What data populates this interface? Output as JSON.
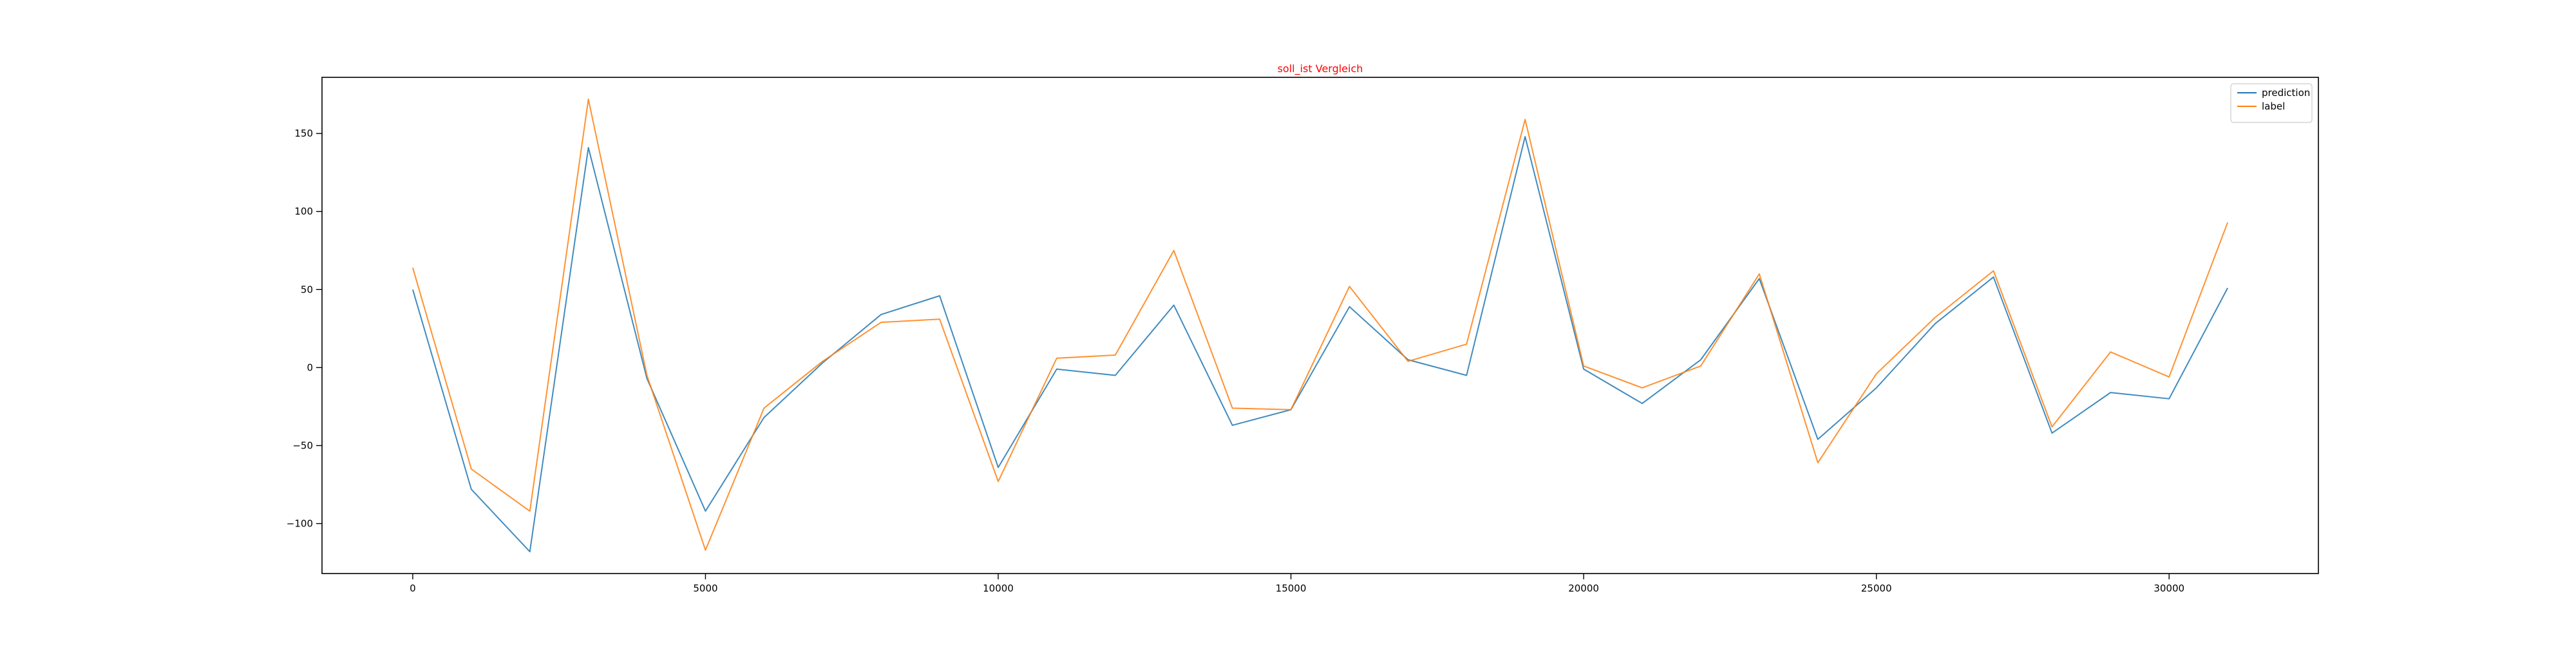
{
  "chart_data": {
    "type": "line",
    "title": "soll_ist Vergleich",
    "title_color": "#ff0000",
    "xlabel": "",
    "ylabel": "",
    "xlim": [
      -1550,
      32550
    ],
    "ylim": [
      -132,
      186
    ],
    "x_ticks": [
      0,
      5000,
      10000,
      15000,
      20000,
      25000,
      30000
    ],
    "y_ticks": [
      -100,
      -50,
      0,
      50,
      100,
      150
    ],
    "grid": false,
    "legend_position": "top-right",
    "x": [
      0,
      1000,
      2000,
      3000,
      4000,
      5000,
      6000,
      7000,
      8000,
      9000,
      10000,
      11000,
      12000,
      13000,
      14000,
      15000,
      16000,
      17000,
      18000,
      19000,
      20000,
      21000,
      22000,
      23000,
      24000,
      25000,
      26000,
      27000,
      28000,
      29000,
      30000,
      31000
    ],
    "series": [
      {
        "name": "prediction",
        "color": "#1f77b4",
        "values": [
          50,
          -78,
          -118,
          141,
          -7,
          -92,
          -32,
          3,
          34,
          46,
          -64,
          -1,
          -5,
          40,
          -37,
          -27,
          39,
          5,
          -5,
          148,
          -1,
          -23,
          5,
          57,
          -46,
          -13,
          28,
          58,
          -42,
          -16,
          -20,
          51
        ]
      },
      {
        "name": "label",
        "color": "#ff7f0e",
        "values": [
          64,
          -65,
          -92,
          172,
          -5,
          -117,
          -26,
          4,
          29,
          31,
          -73,
          6,
          8,
          75,
          -26,
          -27,
          52,
          4,
          15,
          159,
          1,
          -13,
          1,
          60,
          -61,
          -4,
          32,
          62,
          -38,
          10,
          -6,
          93
        ]
      }
    ]
  }
}
